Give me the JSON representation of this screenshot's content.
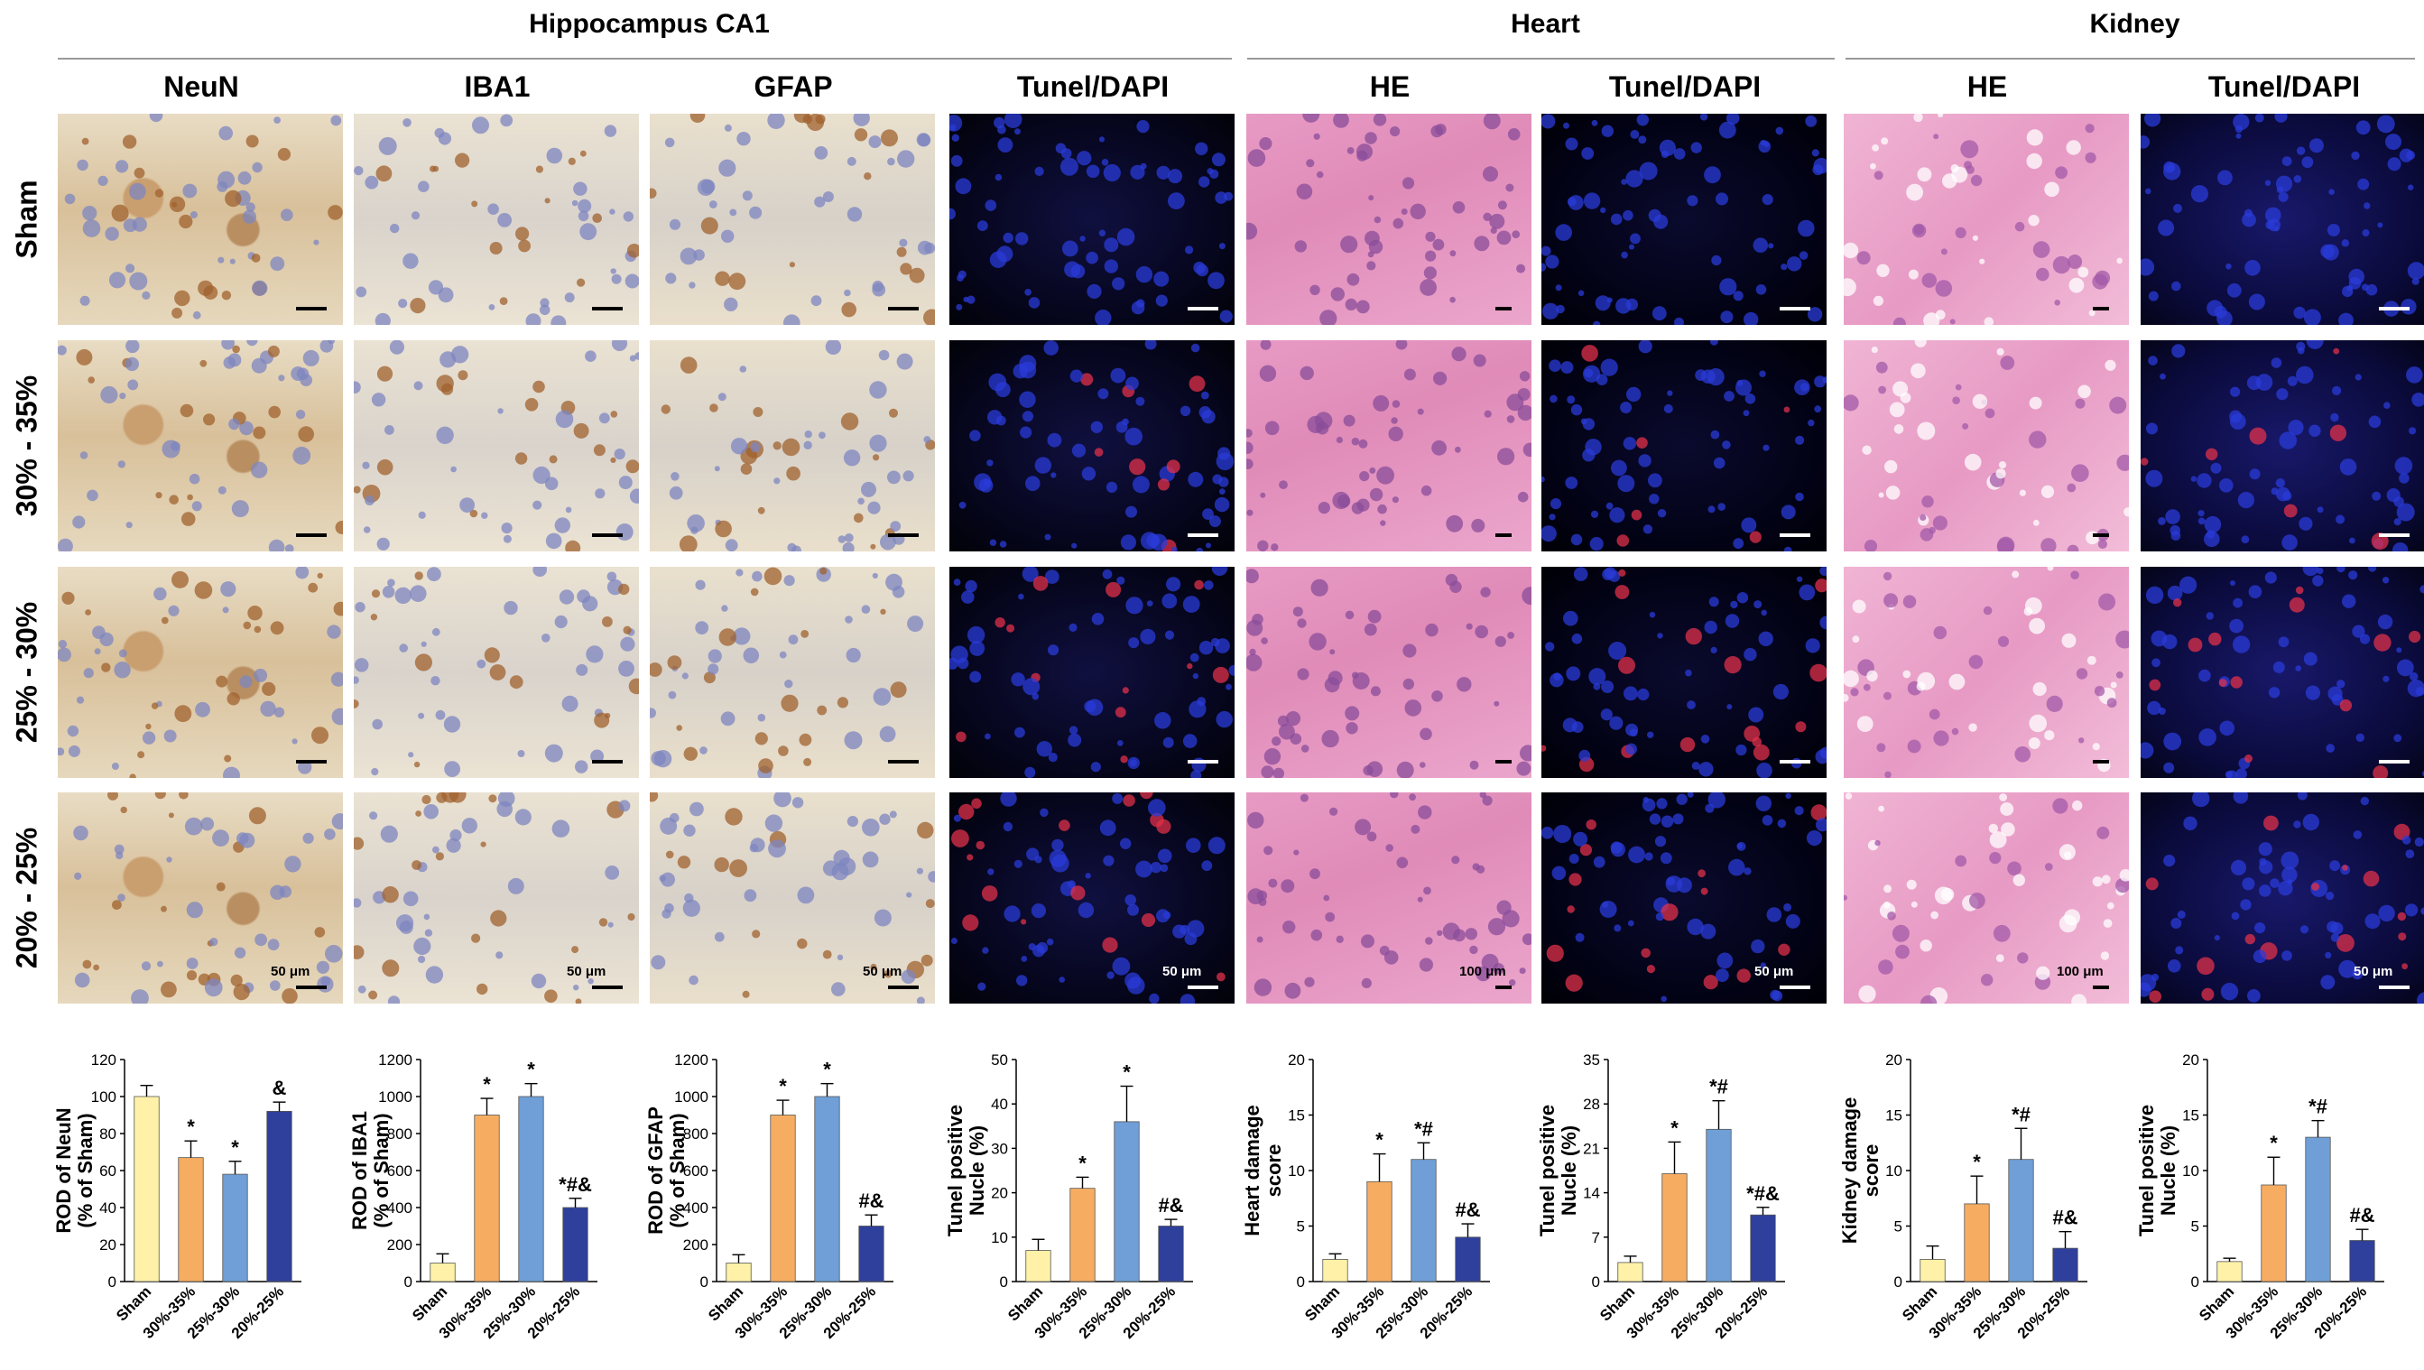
{
  "groups": [
    {
      "title": "Hippocampus CA1",
      "x0": 64,
      "x1": 1375
    },
    {
      "title": "Heart",
      "x0": 1382,
      "x1": 2043
    },
    {
      "title": "Kidney",
      "x0": 2045,
      "x1": 2686
    }
  ],
  "columns": [
    "NeuN",
    "IBA1",
    "GFAP",
    "Tunel/DAPI",
    "HE",
    "Tunel/DAPI",
    "HE",
    "Tunel/DAPI"
  ],
  "rows": [
    "Sham",
    "30% - 35%",
    "25% - 30%",
    "20% - 25%"
  ],
  "scalebars": [
    "50 μm",
    "50 μm",
    "50 μm",
    "50 μm",
    "100 μm",
    "50 μm",
    "100 μm",
    "50 μm"
  ],
  "chart_data": [
    {
      "type": "bar",
      "ylabel_lines": [
        "ROD of NeuN",
        "(% of Sham)"
      ],
      "ylim": [
        0,
        120
      ],
      "ticks": [
        0,
        20,
        40,
        60,
        80,
        100,
        120
      ],
      "categories": [
        "Sham",
        "30%-35%",
        "25%-30%",
        "20%-25%"
      ],
      "values": [
        100,
        67,
        58,
        92
      ],
      "errors": [
        6,
        9,
        7,
        5
      ],
      "annotations": [
        "",
        "*",
        "*",
        "&"
      ]
    },
    {
      "type": "bar",
      "ylabel_lines": [
        "ROD of IBA1",
        "(% of Sham)"
      ],
      "ylim": [
        0,
        1200
      ],
      "ticks": [
        0,
        200,
        400,
        600,
        800,
        1000,
        1200
      ],
      "categories": [
        "Sham",
        "30%-35%",
        "25%-30%",
        "20%-25%"
      ],
      "values": [
        100,
        900,
        1000,
        400
      ],
      "errors": [
        50,
        90,
        70,
        50
      ],
      "annotations": [
        "",
        "*",
        "*",
        "*#&"
      ]
    },
    {
      "type": "bar",
      "ylabel_lines": [
        "ROD of GFAP",
        "(% of Sham)"
      ],
      "ylim": [
        0,
        1200
      ],
      "ticks": [
        0,
        200,
        400,
        600,
        800,
        1000,
        1200
      ],
      "categories": [
        "Sham",
        "30%-35%",
        "25%-30%",
        "20%-25%"
      ],
      "values": [
        100,
        900,
        1000,
        300
      ],
      "errors": [
        45,
        80,
        70,
        60
      ],
      "annotations": [
        "",
        "*",
        "*",
        "#&"
      ]
    },
    {
      "type": "bar",
      "ylabel_lines": [
        "Tunel positive",
        "Nucle (%)"
      ],
      "ylim": [
        0,
        50
      ],
      "ticks": [
        0,
        10,
        20,
        30,
        40,
        50
      ],
      "categories": [
        "Sham",
        "30%-35%",
        "25%-30%",
        "20%-25%"
      ],
      "values": [
        7,
        21,
        36,
        12.5
      ],
      "errors": [
        2.5,
        2.5,
        8,
        1.5
      ],
      "annotations": [
        "",
        "*",
        "*",
        "#&"
      ]
    },
    {
      "type": "bar",
      "ylabel_lines": [
        "Heart damage",
        "score"
      ],
      "ylim": [
        0,
        20
      ],
      "ticks": [
        0,
        5,
        10,
        15,
        20
      ],
      "categories": [
        "Sham",
        "30%-35%",
        "25%-30%",
        "20%-25%"
      ],
      "values": [
        2,
        9,
        11,
        4
      ],
      "errors": [
        0.5,
        2.5,
        1.5,
        1.2
      ],
      "annotations": [
        "",
        "*",
        "*#",
        "#&"
      ]
    },
    {
      "type": "bar",
      "ylabel_lines": [
        "Tunel positive",
        "Nucle (%)"
      ],
      "ylim": [
        0,
        35
      ],
      "ticks": [
        0,
        7,
        14,
        21,
        28,
        35
      ],
      "categories": [
        "Sham",
        "30%-35%",
        "25%-30%",
        "20%-25%"
      ],
      "values": [
        3,
        17,
        24,
        10.5
      ],
      "errors": [
        1,
        5,
        4.5,
        1.2
      ],
      "annotations": [
        "",
        "*",
        "*#",
        "*#&"
      ]
    },
    {
      "type": "bar",
      "ylabel_lines": [
        "Kidney damage",
        "score"
      ],
      "ylim": [
        0,
        20
      ],
      "ticks": [
        0,
        5,
        10,
        15,
        20
      ],
      "categories": [
        "Sham",
        "30%-35%",
        "25%-30%",
        "20%-25%"
      ],
      "values": [
        2,
        7,
        11,
        3
      ],
      "errors": [
        1.2,
        2.5,
        2.8,
        1.5
      ],
      "annotations": [
        "",
        "*",
        "*#",
        "#&"
      ]
    },
    {
      "type": "bar",
      "ylabel_lines": [
        "Tunel positive",
        "Nucle (%)"
      ],
      "ylim": [
        0,
        20
      ],
      "ticks": [
        0,
        5,
        10,
        15,
        20
      ],
      "categories": [
        "Sham",
        "30%-35%",
        "25%-30%",
        "20%-25%"
      ],
      "values": [
        1.8,
        8.7,
        13,
        3.7
      ],
      "errors": [
        0.3,
        2.5,
        1.5,
        1
      ],
      "annotations": [
        "",
        "*",
        "*#",
        "#&"
      ]
    }
  ],
  "colors": {
    "bars": [
      "#fff2a8",
      "#f6ad62",
      "#6f9fd6",
      "#2e3f9c"
    ],
    "axis": "#000000"
  }
}
